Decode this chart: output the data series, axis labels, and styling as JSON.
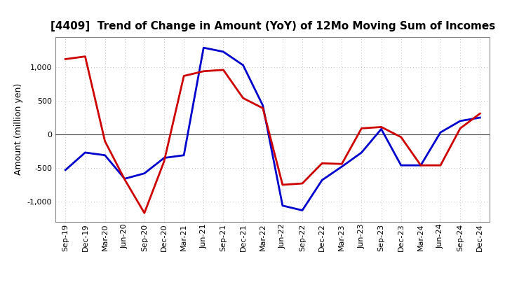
{
  "title": "[4409]  Trend of Change in Amount (YoY) of 12Mo Moving Sum of Incomes",
  "ylabel": "Amount (million yen)",
  "x_labels": [
    "Sep-19",
    "Dec-19",
    "Mar-20",
    "Jun-20",
    "Sep-20",
    "Dec-20",
    "Mar-21",
    "Jun-21",
    "Sep-21",
    "Dec-21",
    "Mar-22",
    "Jun-22",
    "Sep-22",
    "Dec-22",
    "Mar-23",
    "Jun-23",
    "Sep-23",
    "Dec-23",
    "Mar-24",
    "Jun-24",
    "Sep-24",
    "Dec-24"
  ],
  "ordinary_income": [
    -530,
    -270,
    -310,
    -660,
    -580,
    -350,
    -310,
    1290,
    1230,
    1030,
    430,
    -1060,
    -1130,
    -680,
    -480,
    -270,
    80,
    -460,
    -460,
    30,
    200,
    250
  ],
  "net_income": [
    1120,
    1160,
    -100,
    -670,
    -1170,
    -400,
    870,
    940,
    960,
    540,
    390,
    -750,
    -730,
    -430,
    -440,
    90,
    110,
    -40,
    -460,
    -460,
    90,
    310
  ],
  "ordinary_color": "#0000cc",
  "net_color": "#cc0000",
  "ylim": [
    -1300,
    1450
  ],
  "yticks": [
    -1000,
    -500,
    0,
    500,
    1000
  ],
  "bg_color": "#ffffff",
  "grid_color": "#bbbbbb",
  "linewidth": 2.0,
  "title_fontsize": 11,
  "ylabel_fontsize": 9,
  "tick_fontsize": 8
}
